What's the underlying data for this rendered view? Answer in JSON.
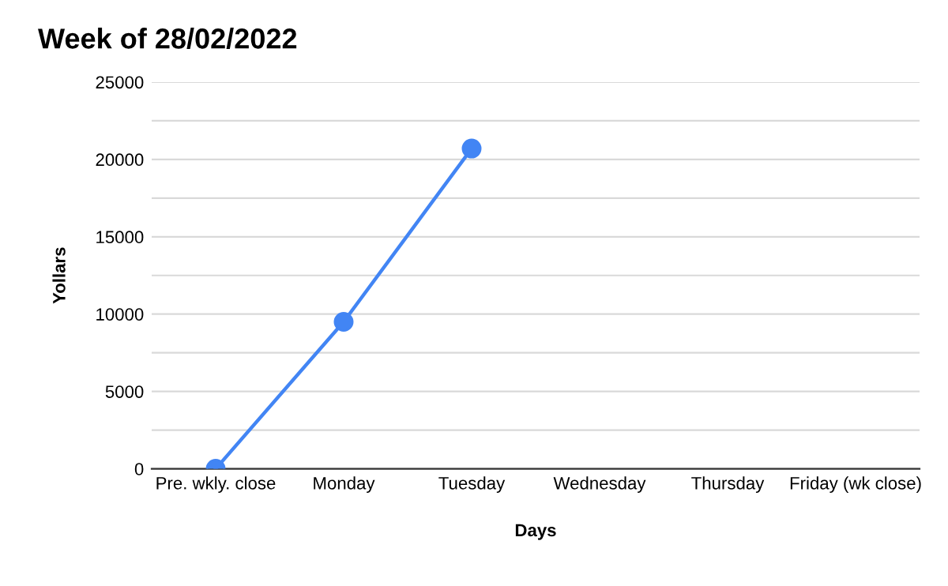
{
  "chart_data": {
    "type": "line",
    "title": "Week of 28/02/2022",
    "xlabel": "Days",
    "ylabel": "Yollars",
    "categories": [
      "Pre. wkly. close",
      "Monday",
      "Tuesday",
      "Wednesday",
      "Thursday",
      "Friday (wk close)"
    ],
    "series": [
      {
        "color": "#4285f4",
        "values": [
          0,
          9500,
          20700,
          null,
          null,
          null
        ]
      }
    ],
    "ylim": [
      0,
      25000
    ],
    "yticks": [
      0,
      {
        "value": 2500,
        "label": null
      },
      5000,
      {
        "value": 7500,
        "label": null
      },
      10000,
      {
        "value": 12500,
        "label": null
      },
      15000,
      {
        "value": 17500,
        "label": null
      },
      20000,
      {
        "value": 22500,
        "label": null
      },
      25000
    ],
    "grid": "y",
    "marker": "circle",
    "line_style": "solid"
  }
}
